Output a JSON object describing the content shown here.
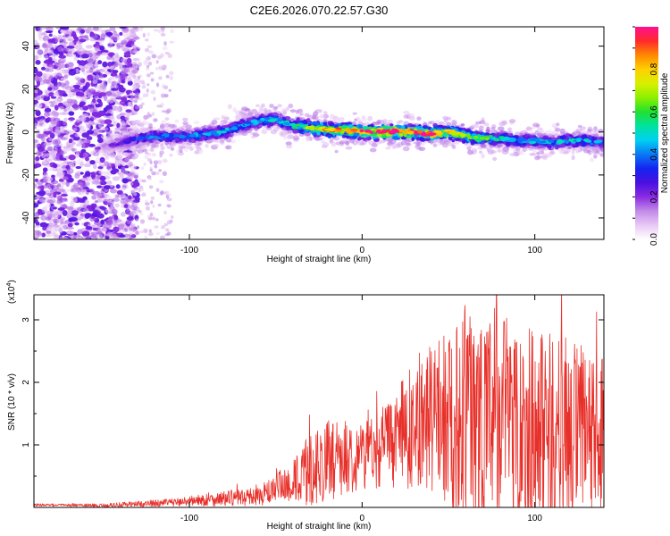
{
  "title": "C2E6.2026.070.22.57.G30",
  "chart_data": [
    {
      "type": "heatmap",
      "title": "C2E6.2026.070.22.57.G30",
      "xlabel": "Height of straight line (km)",
      "ylabel": "Frequency (Hz)",
      "xlim": [
        -190,
        140
      ],
      "ylim": [
        -50,
        49
      ],
      "xticks": [
        -100,
        0,
        100
      ],
      "xtick_labels": [
        "-100",
        "0",
        "100"
      ],
      "yticks": [
        -40,
        -20,
        0,
        20,
        40
      ],
      "ytick_labels": [
        "-40",
        "-20",
        "0",
        "20",
        "40"
      ],
      "ridge": {
        "x": [
          -150,
          -140,
          -130,
          -120,
          -110,
          -100,
          -90,
          -80,
          -70,
          -60,
          -50,
          -40,
          -30,
          -20,
          -10,
          0,
          10,
          20,
          30,
          40,
          50,
          60,
          70,
          80,
          90,
          100,
          110,
          120,
          130,
          140
        ],
        "freq": [
          -7,
          -5,
          -3,
          -2,
          -2,
          -2,
          -1,
          0,
          3,
          5,
          6,
          3,
          2,
          1,
          1,
          0,
          0,
          0,
          0,
          -1,
          0,
          -2,
          -3,
          -3,
          -4,
          -4,
          -5,
          -4,
          -4,
          -5
        ],
        "amplitude": [
          0.15,
          0.25,
          0.35,
          0.4,
          0.4,
          0.42,
          0.45,
          0.45,
          0.4,
          0.45,
          0.45,
          0.5,
          0.7,
          0.85,
          0.85,
          0.9,
          0.95,
          0.95,
          0.9,
          0.95,
          0.8,
          0.65,
          0.6,
          0.5,
          0.45,
          0.45,
          0.45,
          0.5,
          0.45,
          0.4
        ]
      },
      "colorbar": {
        "label": "Normalized spectral amplitude",
        "range": [
          0,
          1
        ],
        "ticks": [
          "0.0",
          "0.2",
          "0.4",
          "0.6",
          "0.8"
        ],
        "colors": [
          "#ffffff",
          "#e9c9f5",
          "#c28ae8",
          "#8b2be2",
          "#4a10e0",
          "#1424f0",
          "#0a78f5",
          "#00d0f2",
          "#00e3a0",
          "#20e030",
          "#8cf000",
          "#d8f000",
          "#ffd000",
          "#ff8800",
          "#ff2a2a",
          "#ff1090"
        ]
      }
    },
    {
      "type": "line",
      "xlabel": "Height of straight line (km)",
      "ylabel": "SNR (10 * v/v)",
      "multiplier_base": "(x10",
      "multiplier_exp": "4",
      "multiplier_close": ")",
      "xlim": [
        -190,
        140
      ],
      "ylim": [
        0,
        3.4
      ],
      "xticks": [
        -100,
        0,
        100
      ],
      "xtick_labels": [
        "-100",
        "0",
        "100"
      ],
      "yticks": [
        1,
        2,
        3
      ],
      "ytick_labels": [
        "1",
        "2",
        "3"
      ],
      "series": [
        {
          "name": "SNR",
          "color": "#e8302a",
          "envelope_x": [
            -190,
            -150,
            -110,
            -80,
            -60,
            -40,
            -30,
            -20,
            -10,
            0,
            10,
            20,
            30,
            40,
            50,
            60,
            70,
            80,
            90,
            100,
            110,
            120,
            130,
            140
          ],
          "envelope_mean": [
            0.04,
            0.03,
            0.08,
            0.14,
            0.18,
            0.4,
            0.6,
            0.75,
            0.8,
            0.85,
            0.95,
            1.1,
            1.3,
            1.45,
            1.4,
            1.5,
            1.35,
            1.4,
            1.3,
            1.25,
            1.2,
            1.15,
            1.1,
            1.0
          ],
          "envelope_amp": [
            0.02,
            0.03,
            0.06,
            0.12,
            0.15,
            0.35,
            0.6,
            0.65,
            0.6,
            0.55,
            0.65,
            0.8,
            1.0,
            1.2,
            1.4,
            1.8,
            1.9,
            1.9,
            1.8,
            1.7,
            1.6,
            1.6,
            1.5,
            1.4
          ]
        }
      ]
    }
  ]
}
